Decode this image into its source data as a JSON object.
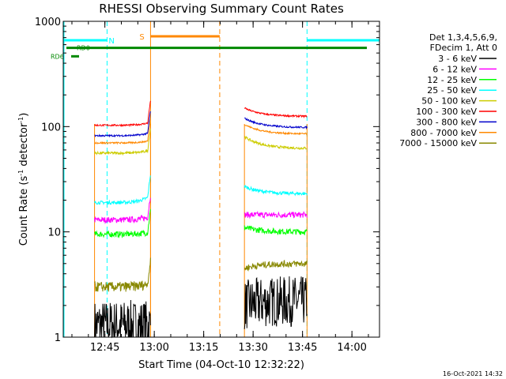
{
  "chart_data": {
    "type": "line",
    "title": "RHESSI Observing Summary Count Rates",
    "xlabel": "Start Time (04-Oct-10 12:32:22)",
    "ylabel_main": "Count Rate (s",
    "ylabel_sup": "-1",
    "ylabel_rest": " detector",
    "ylabel_close": ")",
    "yscale": "log",
    "ylim": [
      1,
      1000
    ],
    "xlim_minutes": [
      0,
      96
    ],
    "x_ticks": [
      {
        "label": "12:45",
        "min": 12.633
      },
      {
        "label": "13:00",
        "min": 27.633
      },
      {
        "label": "13:15",
        "min": 42.633
      },
      {
        "label": "13:30",
        "min": 57.633
      },
      {
        "label": "13:45",
        "min": 72.633
      },
      {
        "label": "14:00",
        "min": 87.633
      }
    ],
    "y_ticks": [
      {
        "label": "1",
        "value": 1
      },
      {
        "label": "10",
        "value": 10
      },
      {
        "label": "100",
        "value": 100
      },
      {
        "label": "1000",
        "value": 1000
      }
    ],
    "legend_header": [
      "Det 1,3,4,5,6,9,",
      "FDecim 1, Att 0"
    ],
    "series": [
      {
        "name": "3 - 6 keV",
        "color": "#000000",
        "v1": [
          1.3,
          1.3
        ],
        "v2": [
          2.0,
          2.2
        ],
        "noise": 0.4,
        "floor": 1
      },
      {
        "name": "6 - 12 keV",
        "color": "#ff00ff",
        "v1": [
          13,
          14
        ],
        "v2": [
          14.5,
          14.5
        ],
        "noise": 0.07,
        "floor": 0
      },
      {
        "name": "12 - 25 keV",
        "color": "#00ff00",
        "v1": [
          9.5,
          10
        ],
        "v2": [
          11,
          10
        ],
        "noise": 0.07,
        "floor": 0
      },
      {
        "name": "25 - 50 keV",
        "color": "#00ffff",
        "v1": [
          19,
          22
        ],
        "v2": [
          27,
          23
        ],
        "noise": 0.04,
        "floor": 0
      },
      {
        "name": "50 - 100 keV",
        "color": "#cccc00",
        "v1": [
          56,
          60
        ],
        "v2": [
          80,
          62
        ],
        "noise": 0.03,
        "floor": 0
      },
      {
        "name": "100 - 300 keV",
        "color": "#ff0000",
        "v1": [
          103,
          110
        ],
        "v2": [
          150,
          125
        ],
        "noise": 0.02,
        "floor": 0
      },
      {
        "name": "300 - 800 keV",
        "color": "#0000cc",
        "v1": [
          82,
          88
        ],
        "v2": [
          120,
          98
        ],
        "noise": 0.02,
        "floor": 0
      },
      {
        "name": "800 - 7000 keV",
        "color": "#ff8800",
        "v1": [
          70,
          74
        ],
        "v2": [
          105,
          85
        ],
        "noise": 0.02,
        "floor": 0
      },
      {
        "name": "7000 - 15000 keV",
        "color": "#888800",
        "v1": [
          3.0,
          3.3
        ],
        "v2": [
          4.5,
          5.0
        ],
        "noise": 0.08,
        "floor": 0
      }
    ],
    "data_segments_minutes": [
      [
        9.5,
        26.5
      ],
      [
        55.0,
        74.0
      ]
    ],
    "flags": {
      "night": {
        "label": "N",
        "color": "#00ffff",
        "spans": [
          [
            0,
            13.3
          ],
          [
            74.0,
            96.0
          ]
        ],
        "level": 660
      },
      "saa": {
        "label": "S",
        "color": "#ff8800",
        "spans": [
          [
            26.5,
            47.5
          ]
        ],
        "level": 720
      },
      "rd0": {
        "label": "RD0",
        "color": "#008800",
        "level": 560
      },
      "rd6": {
        "label": "RD6",
        "color": "#008800",
        "level": 465
      }
    }
  },
  "footer_date": "16-Oct-2021 14:32"
}
